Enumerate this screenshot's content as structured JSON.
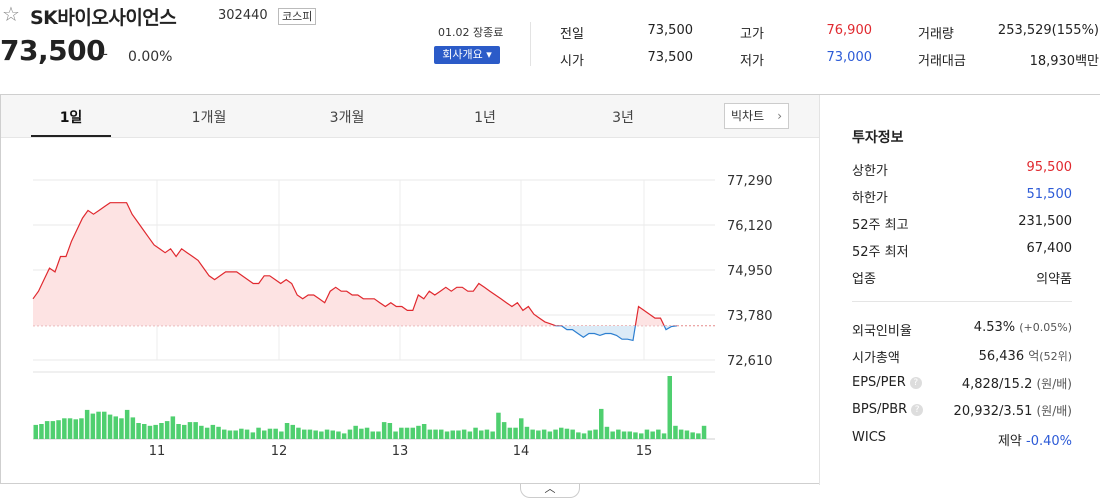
{
  "stock": {
    "name": "SK바이오사이언스",
    "code": "302440",
    "market": "코스피",
    "price": "73,500",
    "change_symbol": "–",
    "change_rate": "0.00%",
    "date_status": "01.02 장종료",
    "company_info_button": "회사개요 ▾"
  },
  "quote": {
    "prev_close_label": "전일",
    "prev_close": "73,500",
    "open_label": "시가",
    "open": "73,500",
    "high_label": "고가",
    "high": "76,900",
    "low_label": "저가",
    "low": "73,000",
    "volume_label": "거래량",
    "volume": "253,529(155%)",
    "amount_label": "거래대금",
    "amount": "18,930백만",
    "high_color": "#e0292f",
    "low_color": "#2d5bd7"
  },
  "tabs": [
    "1일",
    "1개월",
    "3개월",
    "1년",
    "3년"
  ],
  "big_chart_button": "빅차트",
  "invest": {
    "title": "투자정보",
    "rows": [
      {
        "label": "상한가",
        "value": "95,500"
      },
      {
        "label": "하한가",
        "value": "51,500"
      },
      {
        "label": "52주 최고",
        "value": "231,500"
      },
      {
        "label": "52주 최저",
        "value": "67,400"
      },
      {
        "label": "업종",
        "value": "의약품"
      }
    ],
    "foreign_label": "외국인비율",
    "foreign_value": "4.53%",
    "foreign_sub": "(+0.05%)",
    "mcap_label": "시가총액",
    "mcap_value": "56,436",
    "mcap_unit": "억",
    "mcap_sub": "(52위)",
    "eps_label": "EPS/PER",
    "eps_value": "4,828/15.2",
    "eps_unit": "(원/배)",
    "bps_label": "BPS/PBR",
    "bps_value": "20,932/3.51",
    "bps_unit": "(원/배)",
    "wics_label": "WICS",
    "wics_value": "제약",
    "wics_rate": "-0.40%"
  },
  "chart_data": {
    "type": "line",
    "title": "",
    "x_ticks": [
      "11",
      "12",
      "13",
      "14",
      "15"
    ],
    "y_ticks": [
      77290,
      76120,
      74950,
      73780,
      72610
    ],
    "y_tick_labels": [
      "77,290",
      "76,120",
      "74,950",
      "73,780",
      "72,610"
    ],
    "ylim": [
      72610,
      77290
    ],
    "reference_price": 73500,
    "up_color": "#e0292f",
    "down_color": "#2d7fd0",
    "volume_color": "#4fcf6f",
    "price_series": [
      74200,
      74400,
      74700,
      75000,
      74900,
      75300,
      75300,
      75700,
      76000,
      76300,
      76500,
      76400,
      76500,
      76600,
      76700,
      76700,
      76700,
      76700,
      76400,
      76200,
      76000,
      75800,
      75600,
      75500,
      75400,
      75500,
      75300,
      75500,
      75400,
      75300,
      75200,
      75000,
      74800,
      74700,
      74800,
      74900,
      74900,
      74900,
      74800,
      74700,
      74600,
      74600,
      74800,
      74800,
      74700,
      74600,
      74700,
      74600,
      74300,
      74200,
      74300,
      74300,
      74200,
      74100,
      74400,
      74500,
      74400,
      74400,
      74300,
      74300,
      74200,
      74200,
      74200,
      74100,
      74000,
      74100,
      74000,
      74000,
      73900,
      73900,
      74300,
      74200,
      74400,
      74300,
      74400,
      74500,
      74400,
      74500,
      74500,
      74400,
      74400,
      74600,
      74500,
      74400,
      74300,
      74200,
      74100,
      74000,
      74100,
      73900,
      74000,
      73800,
      73700,
      73600,
      73550,
      73500,
      73500,
      73400,
      73400,
      73300,
      73200,
      73300,
      73300,
      73250,
      73300,
      73300,
      73250,
      73150,
      73150,
      73120,
      74000,
      73900,
      73800,
      73700,
      73700,
      73400,
      73480,
      73500
    ],
    "volume_series": [
      15,
      16,
      19,
      19,
      20,
      22,
      22,
      21,
      22,
      31,
      27,
      29,
      29,
      26,
      24,
      22,
      31,
      23,
      17,
      16,
      14,
      15,
      17,
      19,
      24,
      16,
      15,
      18,
      18,
      14,
      12,
      15,
      13,
      10,
      9,
      9,
      11,
      10,
      7,
      12,
      9,
      11,
      11,
      8,
      17,
      15,
      12,
      10,
      10,
      9,
      8,
      10,
      9,
      8,
      6,
      10,
      14,
      11,
      12,
      8,
      8,
      18,
      17,
      8,
      12,
      12,
      12,
      14,
      16,
      10,
      10,
      10,
      8,
      9,
      9,
      10,
      8,
      12,
      9,
      10,
      8,
      28,
      18,
      12,
      12,
      22,
      13,
      10,
      9,
      10,
      8,
      10,
      12,
      11,
      10,
      7,
      6,
      9,
      10,
      32,
      13,
      8,
      10,
      8,
      8,
      7,
      6,
      10,
      8,
      10,
      6,
      67,
      14,
      10,
      9,
      7,
      6,
      14
    ]
  }
}
